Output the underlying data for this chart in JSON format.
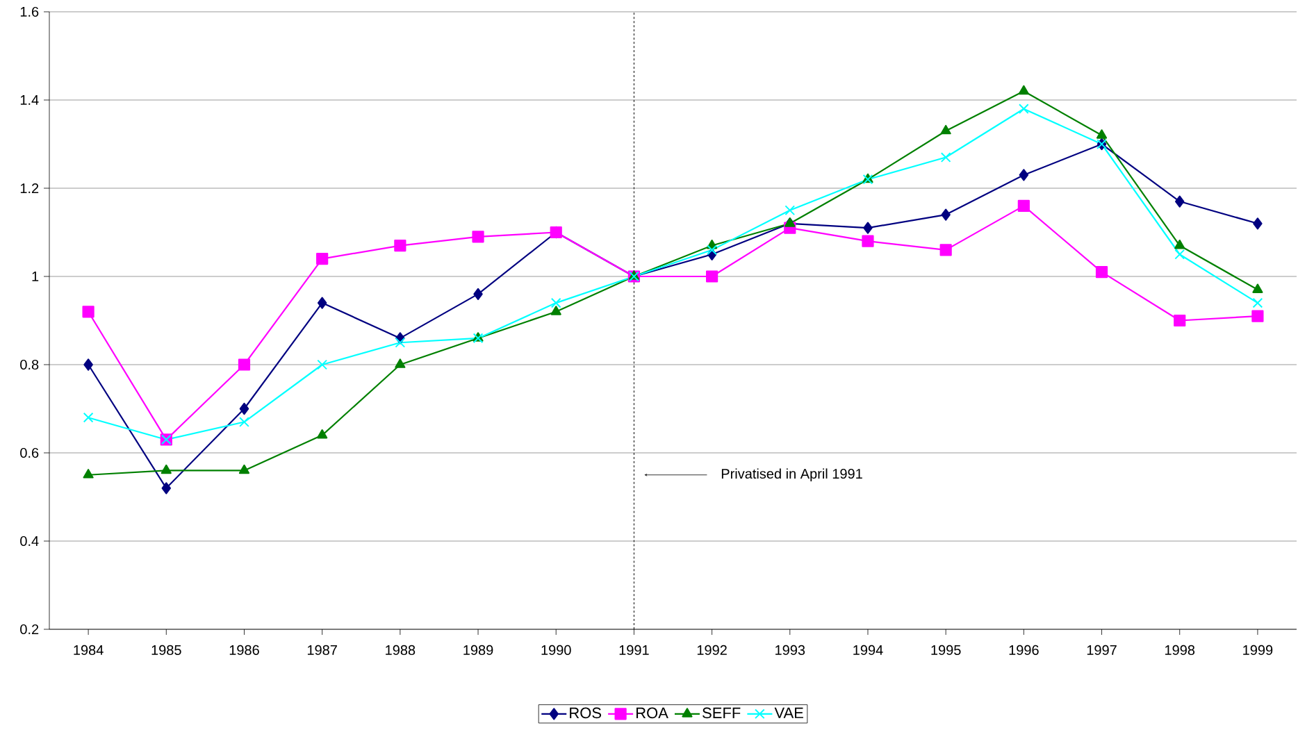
{
  "chart_data": {
    "type": "line",
    "x": [
      1984,
      1985,
      1986,
      1987,
      1988,
      1989,
      1990,
      1991,
      1992,
      1993,
      1994,
      1995,
      1996,
      1997,
      1998,
      1999
    ],
    "xlim": [
      1983.5,
      1999.5
    ],
    "xticks": [
      1984,
      1985,
      1986,
      1987,
      1988,
      1989,
      1990,
      1991,
      1992,
      1993,
      1994,
      1995,
      1996,
      1997,
      1998,
      1999
    ],
    "ylim": [
      0.2,
      1.6
    ],
    "yticks": [
      0.2,
      0.4,
      0.6,
      0.8,
      1,
      1.2,
      1.4,
      1.6
    ],
    "grid": "y",
    "legend": "bottom",
    "line_style": "solid",
    "series": [
      {
        "name": "ROS",
        "color": "#000080",
        "marker": "diamond",
        "values": [
          0.8,
          0.52,
          0.7,
          0.94,
          0.86,
          0.96,
          1.1,
          1.0,
          1.05,
          1.12,
          1.11,
          1.14,
          1.23,
          1.3,
          1.17,
          1.12
        ]
      },
      {
        "name": "ROA",
        "color": "#ff00ff",
        "marker": "square",
        "values": [
          0.92,
          0.63,
          0.8,
          1.04,
          1.07,
          1.09,
          1.1,
          1.0,
          1.0,
          1.11,
          1.08,
          1.06,
          1.16,
          1.01,
          0.9,
          0.91
        ]
      },
      {
        "name": "SEFF",
        "color": "#008000",
        "marker": "triangle",
        "values": [
          0.55,
          0.56,
          0.56,
          0.64,
          0.8,
          0.86,
          0.92,
          1.0,
          1.07,
          1.12,
          1.22,
          1.33,
          1.42,
          1.32,
          1.07,
          0.97
        ]
      },
      {
        "name": "VAE",
        "color": "#00ffff",
        "marker": "cross",
        "values": [
          0.68,
          0.63,
          0.67,
          0.8,
          0.85,
          0.86,
          0.94,
          1.0,
          1.06,
          1.15,
          1.22,
          1.27,
          1.38,
          1.3,
          1.05,
          0.94
        ]
      }
    ],
    "ref_lines": [
      {
        "axis": "x",
        "value": 1991,
        "line_style": "dashed",
        "color": "#000000"
      }
    ],
    "annotations": [
      "Privatised in April 1991"
    ]
  }
}
